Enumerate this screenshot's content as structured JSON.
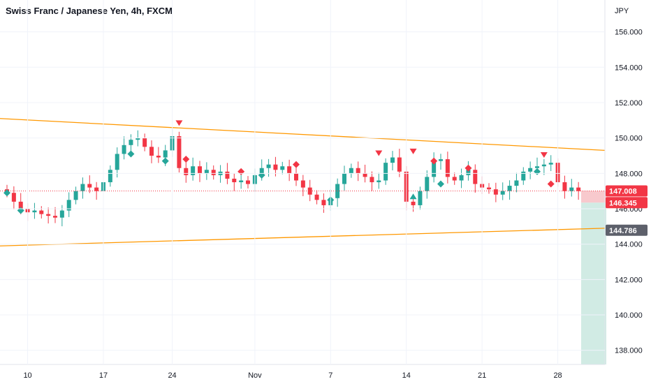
{
  "header": {
    "title": "Swiss Franc / Japanese Yen, 4h, FXCM"
  },
  "chart_data": {
    "type": "candlestick",
    "currency_label": "JPY",
    "ylim": [
      137.2,
      157.8
    ],
    "y_ticks": [
      "156.000",
      "154.000",
      "152.000",
      "150.000",
      "148.000",
      "146.000",
      "144.000",
      "142.000",
      "140.000",
      "138.000"
    ],
    "y_tick_values": [
      156,
      154,
      152,
      150,
      148,
      146,
      144,
      142,
      140,
      138
    ],
    "x_ticks": [
      "10",
      "17",
      "24",
      "Nov",
      "7",
      "14",
      "21",
      "28"
    ],
    "x_tick_index": [
      3,
      14,
      24,
      36,
      47,
      58,
      69,
      80
    ],
    "bar_count": 84,
    "price_tags": [
      {
        "label": "147.008",
        "value": 147.008,
        "color": "#f23645"
      },
      {
        "label": "146.345",
        "value": 146.345,
        "color": "#f23645"
      },
      {
        "label": "144.786",
        "value": 144.786,
        "color": "#5d606b"
      }
    ],
    "closes": [
      146.9,
      146.4,
      146.0,
      145.8,
      145.9,
      145.7,
      145.6,
      145.5,
      145.9,
      146.5,
      147.0,
      147.4,
      147.2,
      147.0,
      147.5,
      148.2,
      149.1,
      149.6,
      149.9,
      150.0,
      149.5,
      149.0,
      148.9,
      149.3,
      150.1,
      148.3,
      147.9,
      148.4,
      148.0,
      148.2,
      147.9,
      148.1,
      147.7,
      147.5,
      147.6,
      147.4,
      147.9,
      148.3,
      148.5,
      148.2,
      148.4,
      148.0,
      147.6,
      147.2,
      146.8,
      146.5,
      146.2,
      146.6,
      147.4,
      148.0,
      148.3,
      148.0,
      147.8,
      147.5,
      147.6,
      148.6,
      148.9,
      148.1,
      146.4,
      146.2,
      147.0,
      147.8,
      148.7,
      148.8,
      147.8,
      147.6,
      147.9,
      148.2,
      147.4,
      147.2,
      147.1,
      146.8,
      147.0,
      147.3,
      147.6,
      148.1,
      148.3,
      148.4,
      148.5,
      148.6,
      147.5,
      147.0,
      147.2,
      147.0
    ],
    "trendlines": [
      {
        "name": "upper-resistance",
        "start": [
          0,
          151.1
        ],
        "end": [
          84,
          149.3
        ],
        "color": "#ff9800"
      },
      {
        "name": "lower-support",
        "start": [
          0,
          143.9
        ],
        "end": [
          84,
          144.9
        ],
        "color": "#ff9800"
      }
    ],
    "position": {
      "entry": 146.345,
      "stop": 147.008,
      "target": 137.2,
      "stop_color": "#f8c9cd",
      "target_color": "#d1ebe4"
    },
    "markers": [
      {
        "type": "triangle-down",
        "index": 25,
        "value": 150.8,
        "color": "#f23645"
      },
      {
        "type": "triangle-down",
        "index": 54,
        "value": 149.1,
        "color": "#f23645"
      },
      {
        "type": "triangle-down",
        "index": 59,
        "value": 149.2,
        "color": "#f23645"
      },
      {
        "type": "triangle-down",
        "index": 78,
        "value": 149.0,
        "color": "#f23645"
      },
      {
        "type": "triangle-up",
        "index": 59,
        "value": 146.7,
        "color": "#26a69a"
      },
      {
        "type": "diamond",
        "index": 0,
        "value": 146.9,
        "color": "#26a69a"
      },
      {
        "type": "diamond",
        "index": 2,
        "value": 145.9,
        "color": "#26a69a"
      },
      {
        "type": "diamond",
        "index": 18,
        "value": 149.1,
        "color": "#26a69a"
      },
      {
        "type": "diamond",
        "index": 23,
        "value": 148.7,
        "color": "#26a69a"
      },
      {
        "type": "diamond",
        "index": 37,
        "value": 147.9,
        "color": "#26a69a"
      },
      {
        "type": "diamond",
        "index": 47,
        "value": 146.5,
        "color": "#26a69a"
      },
      {
        "type": "diamond",
        "index": 63,
        "value": 147.4,
        "color": "#26a69a"
      },
      {
        "type": "diamond",
        "index": 77,
        "value": 148.1,
        "color": "#26a69a"
      },
      {
        "type": "diamond",
        "index": 26,
        "value": 148.8,
        "color": "#f23645"
      },
      {
        "type": "diamond",
        "index": 34,
        "value": 148.1,
        "color": "#f23645"
      },
      {
        "type": "diamond",
        "index": 42,
        "value": 148.5,
        "color": "#f23645"
      },
      {
        "type": "diamond",
        "index": 62,
        "value": 148.7,
        "color": "#f23645"
      },
      {
        "type": "diamond",
        "index": 67,
        "value": 148.3,
        "color": "#f23645"
      },
      {
        "type": "diamond",
        "index": 79,
        "value": 147.4,
        "color": "#f23645"
      }
    ]
  },
  "colors": {
    "up": "#26a69a",
    "down": "#f23645",
    "axis_text": "#131722",
    "grid": "#f0f3fa"
  }
}
